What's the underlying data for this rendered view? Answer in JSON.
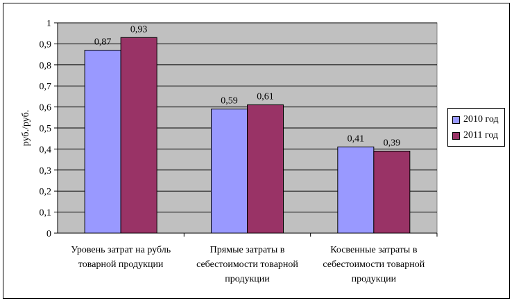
{
  "chart_data": {
    "type": "bar",
    "categories": [
      "Уровень затрат на рубль товарной продукции",
      "Прямые затраты в себестоимости товарной продукции",
      "Косвенные затраты в себестоимости товарной продукции"
    ],
    "category_lines": [
      [
        "Уровень затрат на рубль",
        "товарной продукции"
      ],
      [
        "Прямые затраты в",
        "себестоимости товарной",
        "продукции"
      ],
      [
        "Косвенные затраты в",
        "себестоимости товарной",
        "продукции"
      ]
    ],
    "series": [
      {
        "name": "2010 год",
        "color": "#9999ff",
        "values": [
          0.87,
          0.59,
          0.41
        ],
        "labels": [
          "0,87",
          "0,59",
          "0,41"
        ]
      },
      {
        "name": "2011 год",
        "color": "#993366",
        "values": [
          0.93,
          0.61,
          0.39
        ],
        "labels": [
          "0,93",
          "0,61",
          "0,39"
        ]
      }
    ],
    "ylabel": "руб./руб.",
    "ylim": [
      0,
      1
    ],
    "yticks": [
      "0",
      "0,1",
      "0,2",
      "0,3",
      "0,4",
      "0,5",
      "0,6",
      "0,7",
      "0,8",
      "0,9",
      "1"
    ],
    "plot_background": "#c0c0c0",
    "grid": true,
    "legend_position": "right"
  }
}
